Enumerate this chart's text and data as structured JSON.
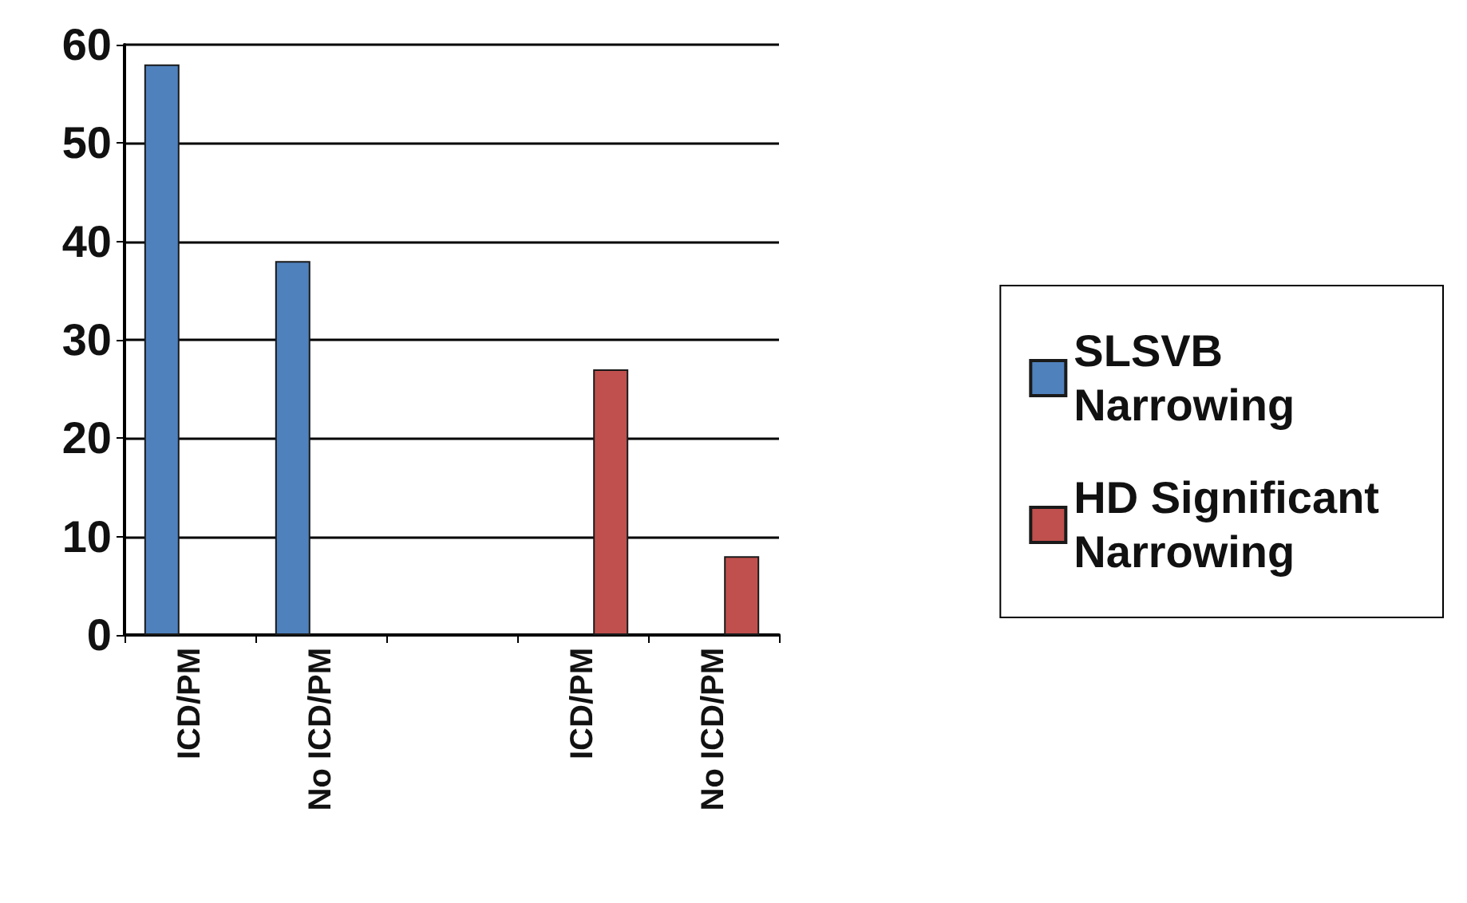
{
  "chart_data": {
    "type": "bar",
    "categories": [
      "ICD/PM",
      "No ICD/PM",
      null,
      "ICD/PM",
      "No ICD/PM"
    ],
    "series": [
      {
        "name": "SLSVB\nNarrowing",
        "color": "#4f81bd",
        "values": [
          58,
          38,
          null,
          null,
          null
        ]
      },
      {
        "name": "HD Significant\nNarrowing",
        "color": "#c0504d",
        "values": [
          null,
          null,
          null,
          27,
          8
        ]
      }
    ],
    "ylim": [
      0,
      60
    ],
    "yticks": [
      0,
      10,
      20,
      30,
      40,
      50,
      60
    ],
    "grid": "y",
    "legend": "right"
  }
}
